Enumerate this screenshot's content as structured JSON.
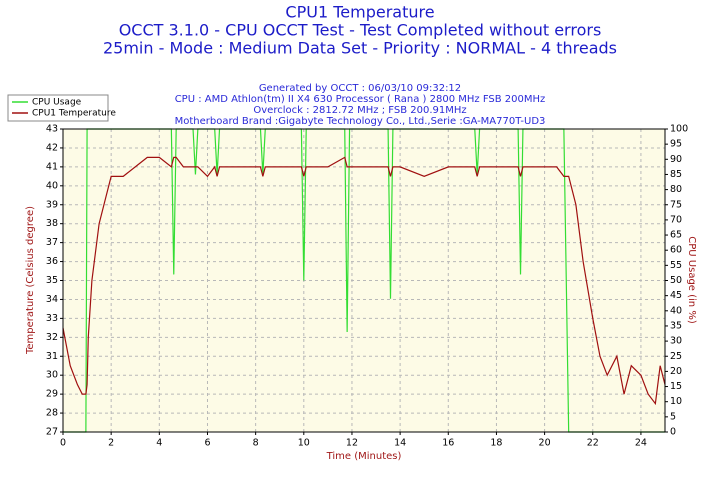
{
  "chart_data": {
    "type": "line",
    "title": "CPU1 Temperature",
    "title_lines": [
      "25min - Mode : Medium Data Set - Priority : NORMAL - 4 threads",
      "OCCT 3.1.0 - CPU OCCT Test - Test Completed without errors"
    ],
    "subtitles": [
      "Generated by OCCT : 06/03/10 09:32:12",
      "CPU : AMD Athlon(tm) II X4 630 Processor ( Rana ) 2800 MHz FSB 200MHz",
      "Overclock : 2812.72 MHz ; FSB 200.91MHz",
      "Motherboard Brand :Gigabyte Technology Co., Ltd.,Serie :GA-MA770T-UD3"
    ],
    "x_label": "Time (Minutes)",
    "y_label": "Temperature (Celsius degree)",
    "y2_label": "CPU Usage (in %)",
    "x": [
      0,
      0.3,
      0.6,
      0.8,
      0.95,
      1.0,
      1.05,
      1.2,
      1.5,
      1.8,
      2,
      2.5,
      3,
      3.5,
      4,
      4.5,
      4.6,
      4.7,
      5,
      5.4,
      5.5,
      5.6,
      6,
      6.3,
      6.4,
      6.5,
      7,
      8,
      8.2,
      8.3,
      8.4,
      9,
      9.9,
      10,
      10.1,
      11,
      11.7,
      11.8,
      11.9,
      12.5,
      13,
      13.5,
      13.6,
      13.7,
      14,
      15,
      16,
      17.1,
      17.2,
      17.3,
      18,
      18.9,
      19,
      19.1,
      20,
      20.5,
      20.8,
      20.9,
      21,
      21.3,
      21.6,
      22,
      22.3,
      22.6,
      23,
      23.3,
      23.6,
      24,
      24.3,
      24.6,
      24.8,
      25
    ],
    "series": [
      {
        "name": "CPU Usage",
        "color": "#33dd33",
        "axis": "y2",
        "values": [
          0,
          0,
          0,
          0,
          0,
          100,
          100,
          100,
          100,
          100,
          100,
          100,
          100,
          100,
          100,
          100,
          52,
          100,
          100,
          100,
          85,
          100,
          100,
          100,
          85,
          100,
          100,
          100,
          100,
          85,
          100,
          100,
          100,
          50,
          100,
          100,
          100,
          33,
          100,
          100,
          100,
          100,
          44,
          100,
          100,
          100,
          100,
          100,
          85,
          100,
          100,
          100,
          52,
          100,
          100,
          100,
          100,
          50,
          0,
          0,
          0,
          0,
          0,
          0,
          0,
          0,
          0,
          0,
          0,
          0,
          0,
          0
        ]
      },
      {
        "name": "CPU1 Temperature",
        "color": "#a01010",
        "values": [
          32.5,
          30.5,
          29.5,
          29,
          29,
          29.5,
          32,
          35,
          38,
          39.5,
          40.5,
          40.5,
          41,
          41.5,
          41.5,
          41,
          41.5,
          41.5,
          41,
          41,
          41,
          41,
          40.5,
          41,
          40.5,
          41,
          41,
          41,
          41,
          40.5,
          41,
          41,
          41,
          40.5,
          41,
          41,
          41.5,
          41,
          41,
          41,
          41,
          41,
          40.5,
          41,
          41,
          40.5,
          41,
          41,
          40.5,
          41,
          41,
          41,
          40.5,
          41,
          41,
          41,
          40.5,
          40.5,
          40.5,
          39,
          36,
          33,
          31,
          30,
          31,
          29,
          30.5,
          30,
          29,
          28.5,
          30.5,
          29.5
        ]
      }
    ],
    "xlim": [
      0,
      25
    ],
    "xticks": [
      0,
      2,
      4,
      6,
      8,
      10,
      12,
      14,
      16,
      18,
      20,
      22,
      24
    ],
    "ylim": [
      27,
      43
    ],
    "yticks": [
      27,
      28,
      29,
      30,
      31,
      32,
      33,
      34,
      35,
      36,
      37,
      38,
      39,
      40,
      41,
      42,
      43
    ],
    "y2lim": [
      0,
      100
    ],
    "y2ticks": [
      0,
      5,
      10,
      15,
      20,
      25,
      30,
      35,
      40,
      45,
      50,
      55,
      60,
      65,
      70,
      75,
      80,
      85,
      90,
      95,
      100
    ],
    "grid": true,
    "legend": "top-left"
  }
}
